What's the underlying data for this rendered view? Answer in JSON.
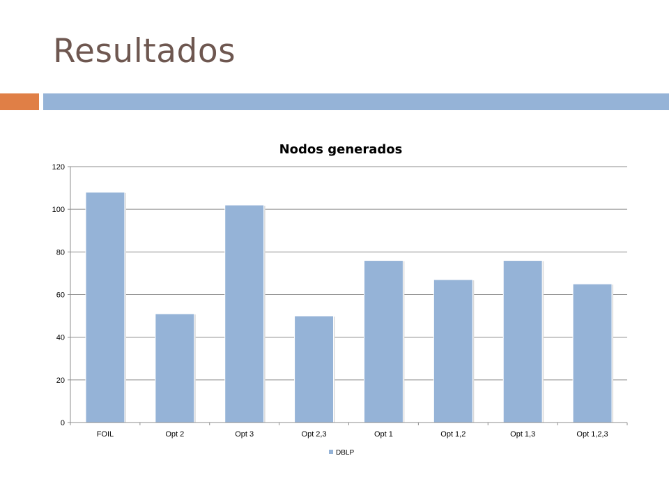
{
  "slide": {
    "title": "Resultados",
    "colors": {
      "title": "#6e5750",
      "accent": "#e07f46",
      "rule": "#95b3d7"
    }
  },
  "chart_data": {
    "type": "bar",
    "title": "Nodos generados",
    "xlabel": "",
    "ylabel": "",
    "categories": [
      "FOIL",
      "Opt 2",
      "Opt 3",
      "Opt 2,3",
      "Opt 1",
      "Opt 1,2",
      "Opt 1,3",
      "Opt 1,2,3"
    ],
    "series": [
      {
        "name": "DBLP",
        "color": "#95b3d7",
        "values": [
          108,
          51,
          102,
          50,
          76,
          67,
          76,
          65
        ]
      }
    ],
    "ylim": [
      0,
      120
    ],
    "yticks": [
      0,
      20,
      40,
      60,
      80,
      100,
      120
    ],
    "grid": true,
    "legend": "bottom"
  }
}
